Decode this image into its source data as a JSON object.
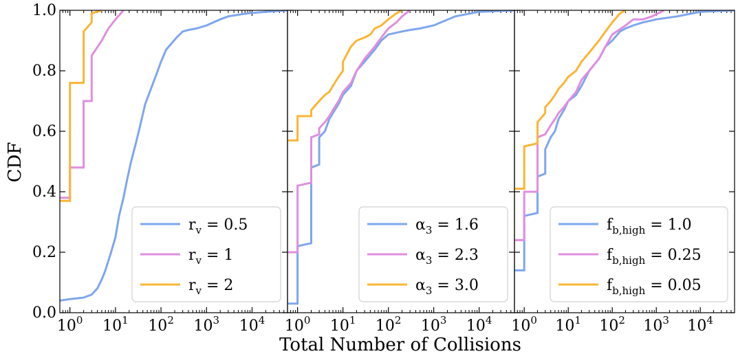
{
  "figure": {
    "ylabel": "CDF",
    "xlabel": "Total Number of Collisions"
  },
  "colors": {
    "blue": "#7ea6ee",
    "pink": "#e08ee0",
    "orange": "#fbb534"
  },
  "chart_data": [
    {
      "type": "line",
      "xscale": "log",
      "xlim": [
        0.6,
        60000
      ],
      "ylim": [
        0,
        1
      ],
      "xticks": [
        1,
        10,
        100,
        1000,
        10000
      ],
      "xtick_labels": [
        "10^0",
        "10^1",
        "10^2",
        "10^3",
        "10^4"
      ],
      "yticks": [
        0,
        0.2,
        0.4,
        0.6,
        0.8,
        1.0
      ],
      "ytick_labels": [
        "0.0",
        "0.2",
        "0.4",
        "0.6",
        "0.8",
        "1.0"
      ],
      "legend_placement": "lower-right",
      "series": [
        {
          "name": "r_v = 0.5",
          "legend_main": "r",
          "legend_sub": "v",
          "legend_value": " = 0.5",
          "color": "#7ea6ee",
          "x": [
            0.6,
            1,
            2,
            3,
            4,
            5,
            6,
            8,
            10,
            12,
            15,
            18,
            22,
            28,
            35,
            45,
            60,
            80,
            100,
            130,
            170,
            220,
            300,
            400,
            600,
            1000,
            2000,
            3000,
            8000,
            20000,
            60000
          ],
          "y": [
            0.04,
            0.045,
            0.05,
            0.06,
            0.08,
            0.11,
            0.14,
            0.2,
            0.25,
            0.32,
            0.38,
            0.44,
            0.5,
            0.56,
            0.62,
            0.69,
            0.74,
            0.79,
            0.83,
            0.87,
            0.89,
            0.91,
            0.93,
            0.935,
            0.94,
            0.95,
            0.97,
            0.98,
            0.99,
            0.995,
            1.0
          ]
        },
        {
          "name": "r_v = 1",
          "legend_main": "r",
          "legend_sub": "v",
          "legend_value": " = 1",
          "color": "#e08ee0",
          "x": [
            0.6,
            1,
            1,
            2,
            2,
            3,
            3,
            5,
            7,
            10,
            15
          ],
          "y": [
            0.38,
            0.38,
            0.48,
            0.48,
            0.7,
            0.7,
            0.85,
            0.9,
            0.94,
            0.97,
            1.0
          ]
        },
        {
          "name": "r_v = 2",
          "legend_main": "r",
          "legend_sub": "v",
          "legend_value": " = 2",
          "color": "#fbb534",
          "x": [
            0.6,
            1,
            1,
            2,
            2,
            3,
            3,
            5
          ],
          "y": [
            0.37,
            0.37,
            0.76,
            0.76,
            0.93,
            0.96,
            0.99,
            1.0
          ]
        }
      ]
    },
    {
      "type": "line",
      "xscale": "log",
      "xlim": [
        0.6,
        60000
      ],
      "ylim": [
        0,
        1
      ],
      "xticks": [
        1,
        10,
        100,
        1000,
        10000
      ],
      "xtick_labels": [
        "10^0",
        "10^1",
        "10^2",
        "10^3",
        "10^4"
      ],
      "legend_placement": "lower-right",
      "series": [
        {
          "name": "α3 = 1.6",
          "legend_main": "α",
          "legend_sub": "3",
          "legend_value": " = 1.6",
          "color": "#7ea6ee",
          "x": [
            0.6,
            1,
            1,
            2,
            2,
            3,
            3,
            4,
            5,
            6,
            8,
            10,
            15,
            20,
            30,
            50,
            70,
            100,
            200,
            300,
            500,
            1000,
            3000,
            10000,
            60000
          ],
          "y": [
            0.03,
            0.03,
            0.22,
            0.23,
            0.48,
            0.49,
            0.58,
            0.6,
            0.64,
            0.66,
            0.69,
            0.72,
            0.75,
            0.8,
            0.83,
            0.87,
            0.9,
            0.92,
            0.93,
            0.935,
            0.94,
            0.95,
            0.98,
            0.995,
            1.0
          ]
        },
        {
          "name": "α3 = 2.3",
          "legend_main": "α",
          "legend_sub": "3",
          "legend_value": " = 2.3",
          "color": "#e08ee0",
          "x": [
            0.6,
            1,
            1,
            2,
            2,
            3,
            3,
            4,
            5,
            6,
            8,
            10,
            15,
            20,
            30,
            50,
            70,
            100,
            150,
            200,
            300
          ],
          "y": [
            0.2,
            0.2,
            0.42,
            0.43,
            0.58,
            0.59,
            0.61,
            0.63,
            0.65,
            0.67,
            0.7,
            0.73,
            0.76,
            0.8,
            0.84,
            0.88,
            0.91,
            0.94,
            0.96,
            0.98,
            1.0
          ]
        },
        {
          "name": "α3 = 3.0",
          "legend_main": "α",
          "legend_sub": "3",
          "legend_value": " = 3.0",
          "color": "#fbb534",
          "x": [
            0.6,
            1,
            1,
            2,
            2,
            3,
            4,
            5,
            6,
            8,
            10,
            10,
            15,
            20,
            30,
            40,
            50,
            70,
            100,
            150,
            200
          ],
          "y": [
            0.57,
            0.57,
            0.65,
            0.65,
            0.67,
            0.7,
            0.72,
            0.73,
            0.75,
            0.78,
            0.8,
            0.83,
            0.88,
            0.9,
            0.91,
            0.92,
            0.94,
            0.95,
            0.97,
            0.99,
            1.0
          ]
        }
      ]
    },
    {
      "type": "line",
      "xscale": "log",
      "xlim": [
        0.6,
        60000
      ],
      "ylim": [
        0,
        1
      ],
      "xticks": [
        1,
        10,
        100,
        1000,
        10000
      ],
      "xtick_labels": [
        "10^0",
        "10^1",
        "10^2",
        "10^3",
        "10^4"
      ],
      "legend_placement": "lower-right",
      "series": [
        {
          "name": "f_b,high = 1.0",
          "legend_main": "f",
          "legend_sub": "b,high",
          "legend_value": " = 1.0",
          "color": "#7ea6ee",
          "x": [
            0.6,
            1,
            1,
            2,
            2,
            3,
            3,
            4,
            5,
            6,
            8,
            10,
            15,
            20,
            30,
            50,
            70,
            100,
            150,
            200,
            300,
            500,
            1000,
            3000,
            10000,
            60000
          ],
          "y": [
            0.14,
            0.14,
            0.32,
            0.33,
            0.45,
            0.46,
            0.54,
            0.58,
            0.6,
            0.64,
            0.67,
            0.7,
            0.72,
            0.75,
            0.8,
            0.84,
            0.88,
            0.9,
            0.93,
            0.94,
            0.95,
            0.96,
            0.97,
            0.98,
            0.995,
            1.0
          ]
        },
        {
          "name": "f_b,high = 0.25",
          "legend_main": "f",
          "legend_sub": "b,high",
          "legend_value": " = 0.25",
          "color": "#e08ee0",
          "x": [
            0.6,
            1,
            1,
            2,
            2,
            3,
            4,
            5,
            6,
            8,
            10,
            15,
            20,
            30,
            50,
            70,
            100,
            200,
            300,
            500,
            800,
            1500
          ],
          "y": [
            0.24,
            0.24,
            0.4,
            0.4,
            0.58,
            0.59,
            0.62,
            0.64,
            0.66,
            0.68,
            0.7,
            0.73,
            0.77,
            0.8,
            0.84,
            0.88,
            0.92,
            0.95,
            0.97,
            0.97,
            0.98,
            1.0
          ]
        },
        {
          "name": "f_b,high = 0.05",
          "legend_main": "f",
          "legend_sub": "b,high",
          "legend_value": " = 0.05",
          "color": "#fbb534",
          "x": [
            0.6,
            1,
            1,
            2,
            2,
            3,
            3,
            4,
            5,
            6,
            8,
            10,
            15,
            20,
            30,
            50,
            70,
            100,
            150,
            200
          ],
          "y": [
            0.41,
            0.41,
            0.55,
            0.56,
            0.63,
            0.66,
            0.68,
            0.7,
            0.72,
            0.74,
            0.76,
            0.78,
            0.8,
            0.83,
            0.86,
            0.9,
            0.93,
            0.96,
            0.99,
            1.0
          ]
        }
      ]
    }
  ]
}
